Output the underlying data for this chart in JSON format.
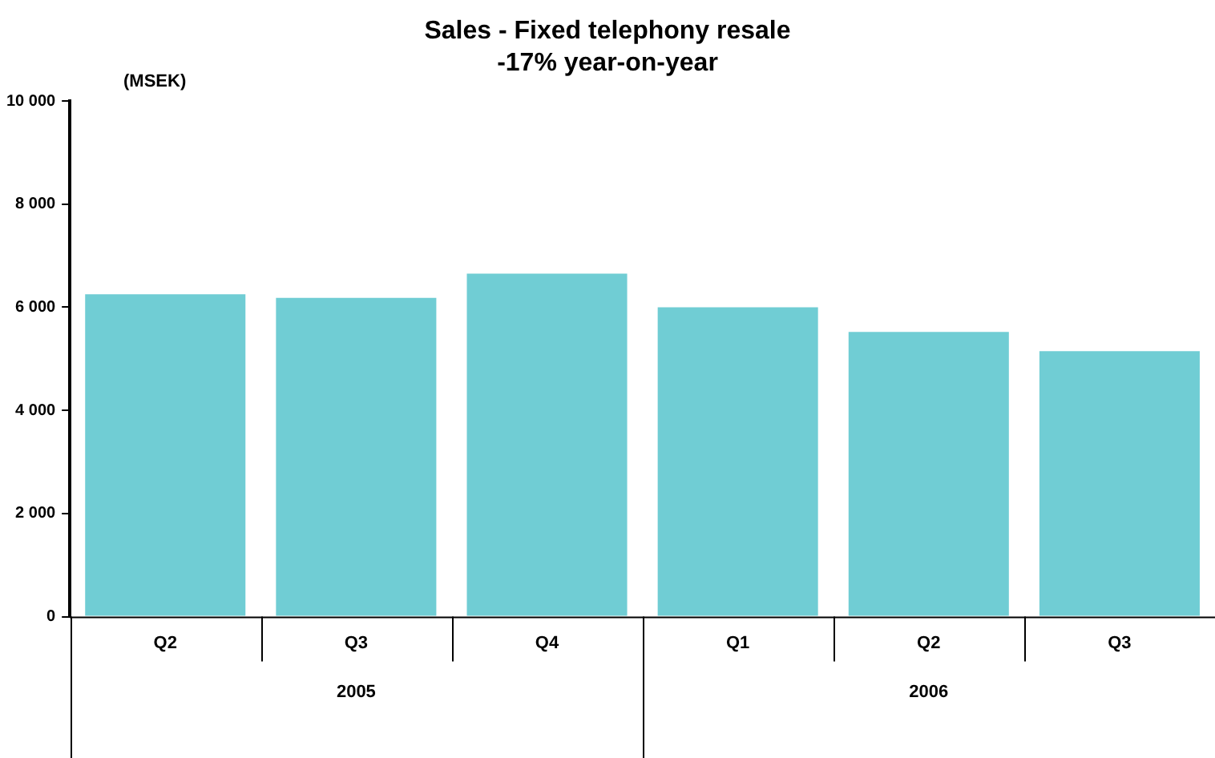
{
  "chart_data": {
    "type": "bar",
    "title": "Sales - Fixed telephony resale",
    "subtitle": "-17% year-on-year",
    "ylabel": "(MSEK)",
    "categories": [
      "Q2",
      "Q3",
      "Q4",
      "Q1",
      "Q2",
      "Q3"
    ],
    "values": [
      6250,
      6180,
      6650,
      6000,
      5520,
      5150
    ],
    "color": "#70cdd4",
    "ylim": [
      0,
      10000
    ],
    "yticks": [
      {
        "value": 0,
        "label": "0"
      },
      {
        "value": 2000,
        "label": "2 000"
      },
      {
        "value": 4000,
        "label": "4 000"
      },
      {
        "value": 6000,
        "label": "6 000"
      },
      {
        "value": 8000,
        "label": "8 000"
      },
      {
        "value": 10000,
        "label": "10 000"
      }
    ],
    "annotations": [
      "2005",
      "2006"
    ],
    "grid": false,
    "legend": false
  }
}
